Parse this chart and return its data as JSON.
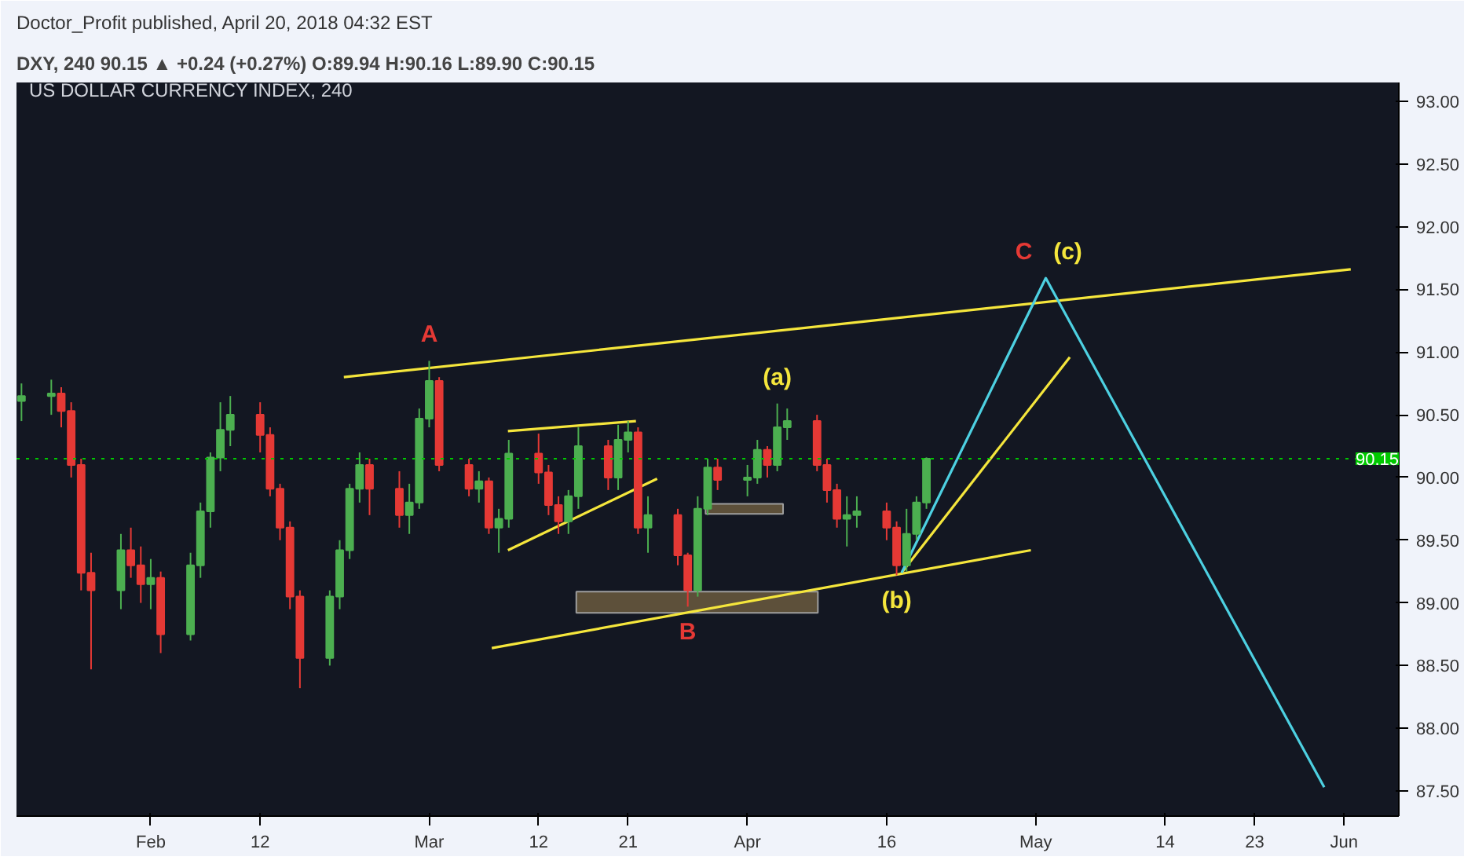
{
  "chart_data": {
    "type": "candlestick",
    "title": "Doctor_Profit published, April 20, 2018 04:32 EST",
    "subtitle": "DXY, 240 90.15 ▲ +0.24 (+0.27%) O:89.94 H:90.16 L:89.90 C:90.15",
    "annotations": [
      "US DOLLAR CURRENCY INDEX, 240",
      {
        "text": "A",
        "x": "2018-03-01",
        "y": 90.93
      },
      {
        "text": "B",
        "x": "2018-03-27",
        "y": 88.97
      },
      {
        "text": "C",
        "x": "2018-05-02",
        "y": 91.59
      },
      {
        "text": "(a)",
        "x": "2018-04-05",
        "y": 90.59
      },
      {
        "text": "(b)",
        "x": "2018-04-17",
        "y": 89.22
      },
      {
        "text": "(c)",
        "x": "2018-05-02",
        "y": 91.59
      }
    ],
    "x": [
      "2018-01-19",
      "2018-01-22",
      "2018-01-23",
      "2018-01-24",
      "2018-01-25",
      "2018-01-26",
      "2018-01-29",
      "2018-01-30",
      "2018-01-31",
      "2018-02-01",
      "2018-02-02",
      "2018-02-05",
      "2018-02-06",
      "2018-02-07",
      "2018-02-08",
      "2018-02-09",
      "2018-02-12",
      "2018-02-13",
      "2018-02-14",
      "2018-02-15",
      "2018-02-16",
      "2018-02-19",
      "2018-02-20",
      "2018-02-21",
      "2018-02-22",
      "2018-02-23",
      "2018-02-26",
      "2018-02-27",
      "2018-02-28",
      "2018-03-01",
      "2018-03-02",
      "2018-03-05",
      "2018-03-06",
      "2018-03-07",
      "2018-03-08",
      "2018-03-09",
      "2018-03-12",
      "2018-03-13",
      "2018-03-14",
      "2018-03-15",
      "2018-03-16",
      "2018-03-19",
      "2018-03-20",
      "2018-03-21",
      "2018-03-22",
      "2018-03-23",
      "2018-03-26",
      "2018-03-27",
      "2018-03-28",
      "2018-03-29",
      "2018-03-30",
      "2018-04-02",
      "2018-04-03",
      "2018-04-04",
      "2018-04-05",
      "2018-04-06",
      "2018-04-09",
      "2018-04-10",
      "2018-04-11",
      "2018-04-12",
      "2018-04-13",
      "2018-04-16",
      "2018-04-17",
      "2018-04-18",
      "2018-04-19",
      "2018-04-20"
    ],
    "ohlc": [
      [
        90.61,
        90.75,
        90.45,
        90.65
      ],
      [
        90.65,
        90.78,
        90.5,
        90.67
      ],
      [
        90.67,
        90.72,
        90.4,
        90.53
      ],
      [
        90.53,
        90.6,
        90.0,
        90.1
      ],
      [
        90.1,
        90.15,
        89.1,
        89.24
      ],
      [
        89.24,
        89.4,
        88.47,
        89.1
      ],
      [
        89.1,
        89.55,
        88.95,
        89.42
      ],
      [
        89.42,
        89.6,
        89.2,
        89.3
      ],
      [
        89.3,
        89.45,
        89.0,
        89.15
      ],
      [
        89.15,
        89.35,
        88.95,
        89.2
      ],
      [
        89.2,
        89.25,
        88.6,
        88.75
      ],
      [
        88.75,
        89.4,
        88.7,
        89.3
      ],
      [
        89.3,
        89.8,
        89.2,
        89.73
      ],
      [
        89.73,
        90.2,
        89.6,
        90.16
      ],
      [
        90.16,
        90.6,
        90.05,
        90.38
      ],
      [
        90.38,
        90.65,
        90.25,
        90.5
      ],
      [
        90.5,
        90.6,
        90.2,
        90.34
      ],
      [
        90.34,
        90.4,
        89.85,
        89.91
      ],
      [
        89.91,
        89.95,
        89.5,
        89.6
      ],
      [
        89.6,
        89.65,
        88.95,
        89.05
      ],
      [
        89.05,
        89.1,
        88.32,
        88.56
      ],
      [
        88.56,
        89.1,
        88.5,
        89.05
      ],
      [
        89.05,
        89.5,
        88.95,
        89.42
      ],
      [
        89.42,
        89.95,
        89.35,
        89.91
      ],
      [
        89.91,
        90.2,
        89.8,
        90.1
      ],
      [
        90.1,
        90.15,
        89.7,
        89.91
      ],
      [
        89.91,
        90.05,
        89.6,
        89.7
      ],
      [
        89.7,
        89.95,
        89.55,
        89.8
      ],
      [
        89.8,
        90.55,
        89.75,
        90.47
      ],
      [
        90.47,
        90.93,
        90.4,
        90.77
      ],
      [
        90.77,
        90.8,
        90.05,
        90.1
      ],
      [
        90.1,
        90.15,
        89.85,
        89.91
      ],
      [
        89.91,
        90.05,
        89.8,
        89.97
      ],
      [
        89.97,
        90.0,
        89.55,
        89.6
      ],
      [
        89.6,
        89.75,
        89.4,
        89.67
      ],
      [
        89.67,
        90.3,
        89.6,
        90.19
      ],
      [
        90.19,
        90.35,
        89.95,
        90.04
      ],
      [
        90.04,
        90.1,
        89.7,
        89.78
      ],
      [
        89.78,
        89.85,
        89.55,
        89.65
      ],
      [
        89.65,
        89.9,
        89.55,
        89.85
      ],
      [
        89.85,
        90.4,
        89.75,
        90.25
      ],
      [
        90.25,
        90.3,
        89.9,
        90.0
      ],
      [
        90.0,
        90.42,
        89.9,
        90.3
      ],
      [
        90.3,
        90.45,
        90.2,
        90.36
      ],
      [
        90.36,
        90.4,
        89.55,
        89.6
      ],
      [
        89.6,
        89.85,
        89.4,
        89.7
      ],
      [
        89.7,
        89.75,
        89.3,
        89.38
      ],
      [
        89.38,
        89.4,
        88.97,
        89.1
      ],
      [
        89.1,
        89.85,
        89.05,
        89.75
      ],
      [
        89.75,
        90.15,
        89.7,
        90.08
      ],
      [
        90.08,
        90.15,
        89.9,
        89.98
      ],
      [
        89.98,
        90.1,
        89.85,
        90.0
      ],
      [
        90.0,
        90.3,
        89.95,
        90.22
      ],
      [
        90.22,
        90.25,
        90.0,
        90.1
      ],
      [
        90.1,
        90.59,
        90.05,
        90.4
      ],
      [
        90.4,
        90.55,
        90.3,
        90.45
      ],
      [
        90.45,
        90.5,
        90.05,
        90.1
      ],
      [
        90.1,
        90.15,
        89.8,
        89.9
      ],
      [
        89.9,
        89.95,
        89.6,
        89.67
      ],
      [
        89.67,
        89.85,
        89.45,
        89.7
      ],
      [
        89.7,
        89.85,
        89.6,
        89.73
      ],
      [
        89.73,
        89.8,
        89.5,
        89.6
      ],
      [
        89.6,
        89.65,
        89.22,
        89.3
      ],
      [
        89.3,
        89.75,
        89.25,
        89.55
      ],
      [
        89.55,
        89.85,
        89.5,
        89.8
      ],
      [
        89.8,
        90.16,
        89.75,
        90.15
      ]
    ],
    "colors": [
      "#4caf50",
      "#4caf50",
      "#e53935",
      "#e53935",
      "#e53935",
      "#e53935",
      "#4caf50",
      "#e53935",
      "#e53935",
      "#4caf50",
      "#e53935",
      "#4caf50",
      "#4caf50",
      "#4caf50",
      "#4caf50",
      "#4caf50",
      "#e53935",
      "#e53935",
      "#e53935",
      "#e53935",
      "#e53935",
      "#4caf50",
      "#4caf50",
      "#4caf50",
      "#4caf50",
      "#e53935",
      "#e53935",
      "#4caf50",
      "#4caf50",
      "#4caf50",
      "#e53935",
      "#e53935",
      "#4caf50",
      "#e53935",
      "#4caf50",
      "#4caf50",
      "#e53935",
      "#e53935",
      "#e53935",
      "#4caf50",
      "#4caf50",
      "#e53935",
      "#4caf50",
      "#4caf50",
      "#e53935",
      "#4caf50",
      "#e53935",
      "#e53935",
      "#4caf50",
      "#4caf50",
      "#e53935",
      "#4caf50",
      "#4caf50",
      "#e53935",
      "#4caf50",
      "#4caf50",
      "#e53935",
      "#e53935",
      "#e53935",
      "#4caf50",
      "#4caf50",
      "#e53935",
      "#e53935",
      "#4caf50",
      "#4caf50",
      "#4caf50"
    ],
    "series": [
      {
        "type": "area",
        "color": "#6b5a3e",
        "x": [
          "2018-03-15T19:00",
          "2018-04-09T02:00",
          "2018-04-09T02:00",
          "2018-03-15T19:00",
          "2018-03-15T19:00"
        ],
        "values": [
          88.92,
          88.92,
          89.09,
          89.09,
          88.92
        ]
      },
      {
        "type": "area",
        "color": "#6b5a3e",
        "x": [
          "2018-03-28T19:00",
          "2018-04-05T14:00",
          "2018-04-05T14:00",
          "2018-03-28T19:00",
          "2018-03-28T19:00"
        ],
        "values": [
          89.71,
          89.71,
          89.79,
          89.79,
          89.71
        ]
      },
      {
        "type": "line",
        "color": "#f5e63c",
        "x": [
          "2018-02-20T10:00",
          "2018-06-01T16:00"
        ],
        "values": [
          90.8,
          91.66
        ]
      },
      {
        "type": "line",
        "color": "#f5e63c",
        "x": [
          "2018-03-07T07:00",
          "2018-04-30T12:00"
        ],
        "values": [
          88.64,
          89.42
        ]
      },
      {
        "type": "line",
        "color": "#f5e63c",
        "x": [
          "2018-04-17T12:00",
          "2018-05-04T10:00"
        ],
        "values": [
          89.24,
          90.96
        ]
      },
      {
        "type": "line",
        "color": "#f5e63c",
        "x": [
          "2018-03-08T22:00",
          "2018-03-23T22:00"
        ],
        "values": [
          89.42,
          89.99
        ]
      },
      {
        "type": "line",
        "color": "#f5e63c",
        "x": [
          "2018-03-08T22:00",
          "2018-03-21T19:00"
        ],
        "values": [
          90.37,
          90.45
        ]
      },
      {
        "type": "line",
        "color": "#4dd0e1",
        "x": [
          "2018-04-17T12:00",
          "2018-05-02",
          "2018-05-30"
        ],
        "values": [
          89.24,
          91.59,
          87.53
        ]
      }
    ],
    "xlim": [
      "2018-01-18T12:00",
      "2018-06-06T12:00"
    ],
    "ylim": [
      87.3,
      93.15
    ],
    "xticks": [
      {
        "value": "2018-02-01",
        "label": "Feb"
      },
      {
        "value": "2018-02-12",
        "label": "12"
      },
      {
        "value": "2018-03-01",
        "label": "Mar"
      },
      {
        "value": "2018-03-12",
        "label": "12"
      },
      {
        "value": "2018-03-21",
        "label": "21"
      },
      {
        "value": "2018-04-02",
        "label": "Apr"
      },
      {
        "value": "2018-04-16",
        "label": "16"
      },
      {
        "value": "2018-05-01",
        "label": "May"
      },
      {
        "value": "2018-05-14",
        "label": "14"
      },
      {
        "value": "2018-05-23",
        "label": "23"
      },
      {
        "value": "2018-06-01",
        "label": "Jun"
      }
    ],
    "yticks": [
      {
        "value": 87.5,
        "label": "87.50"
      },
      {
        "value": 88,
        "label": "88.00"
      },
      {
        "value": 88.5,
        "label": "88.50"
      },
      {
        "value": 89,
        "label": "89.00"
      },
      {
        "value": 89.5,
        "label": "89.50"
      },
      {
        "value": 90,
        "label": "90.00"
      },
      {
        "value": 90.5,
        "label": "90.50"
      },
      {
        "value": 91,
        "label": "91.00"
      },
      {
        "value": 91.5,
        "label": "91.50"
      },
      {
        "value": 92,
        "label": "92.00"
      },
      {
        "value": 92.5,
        "label": "92.50"
      },
      {
        "value": 93,
        "label": "93.00"
      }
    ],
    "ref_lines": [
      {
        "axis": "y",
        "value": 90.15,
        "label": "90.15",
        "color": "#00c800",
        "line_style": "dotted"
      }
    ]
  }
}
